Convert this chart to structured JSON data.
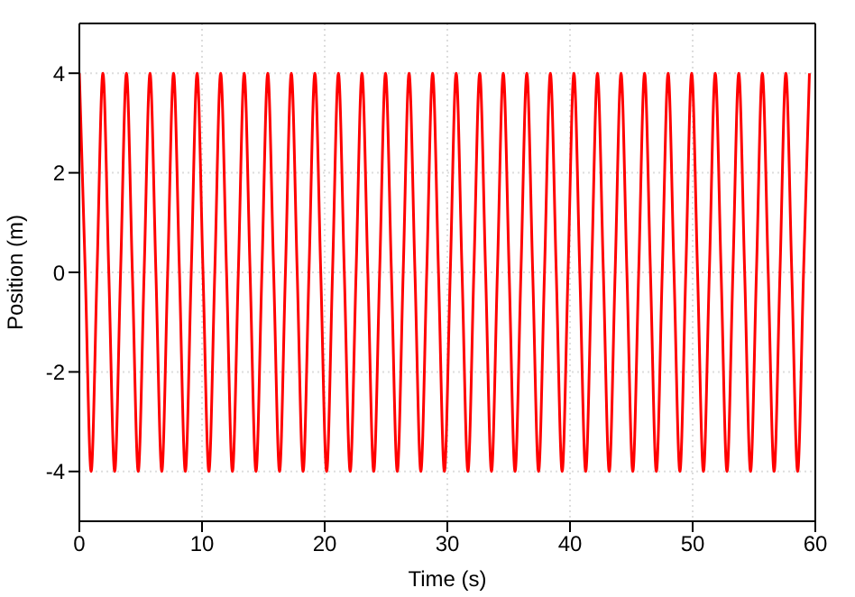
{
  "chart_data": {
    "type": "line",
    "xlabel": "Time (s)",
    "ylabel": "Position (m)",
    "xlim": [
      0,
      60
    ],
    "xticks": [
      0,
      10,
      20,
      30,
      40,
      50,
      60
    ],
    "ylim": [
      -5,
      5
    ],
    "yticks": [
      -4,
      -2,
      0,
      2,
      4
    ],
    "grid": true,
    "legend": false,
    "marker": "none",
    "line_style": "solid",
    "x": [
      0,
      0.48,
      0.96,
      1.44,
      1.92,
      2.4,
      2.88,
      3.36,
      3.84,
      4.32,
      4.8,
      5.28,
      5.76,
      6.24,
      6.72,
      7.2,
      7.68,
      8.16,
      8.64,
      9.12,
      9.6,
      10.08,
      10.56,
      11.04,
      11.52,
      12,
      12.48,
      12.96,
      13.44,
      13.92,
      14.4,
      14.88,
      15.36,
      15.84,
      16.32,
      16.8,
      17.28,
      17.76,
      18.24,
      18.72,
      19.2,
      19.68,
      20.16,
      20.64,
      21.12,
      21.6,
      22.08,
      22.56,
      23.04,
      23.52,
      24,
      24.48,
      24.96,
      25.44,
      25.92,
      26.4,
      26.88,
      27.36,
      27.84,
      28.32,
      28.8,
      29.28,
      29.76,
      30.24,
      30.72,
      31.2,
      31.68,
      32.16,
      32.64,
      33.12,
      33.6,
      34.08,
      34.56,
      35.04,
      35.52,
      36,
      36.48,
      36.96,
      37.44,
      37.92,
      38.4,
      38.88,
      39.36,
      39.84,
      40.32,
      40.8,
      41.28,
      41.76,
      42.24,
      42.72,
      43.2,
      43.68,
      44.16,
      44.64,
      45.12,
      45.6,
      46.08,
      46.56,
      47.04,
      47.52,
      48,
      48.48,
      48.96,
      49.44,
      49.92,
      50.4,
      50.88,
      51.36,
      51.84,
      52.32,
      52.8,
      53.28,
      53.76,
      54.24,
      54.72,
      55.2,
      55.68,
      56.16,
      56.64,
      57.12,
      57.6,
      58.08,
      58.56,
      59.04,
      59.52
    ],
    "series": [
      {
        "color": "#ff0000",
        "values": [
          4,
          0,
          -4,
          0,
          4,
          0,
          -4,
          0,
          4,
          0,
          -4,
          0,
          4,
          0,
          -4,
          0,
          4,
          0,
          -4,
          0,
          4,
          0,
          -4,
          0,
          4,
          0,
          -4,
          0,
          4,
          0,
          -4,
          0,
          4,
          0,
          -4,
          0,
          4,
          0,
          -4,
          0,
          4,
          0,
          -4,
          0,
          4,
          0,
          -4,
          0,
          4,
          0,
          -4,
          0,
          4,
          0,
          -4,
          0,
          4,
          0,
          -4,
          0,
          4,
          0,
          -4,
          0,
          4,
          0,
          -4,
          0,
          4,
          0,
          -4,
          0,
          4,
          0,
          -4,
          0,
          4,
          0,
          -4,
          0,
          4,
          0,
          -4,
          0,
          4,
          0,
          -4,
          0,
          4,
          0,
          -4,
          0,
          4,
          0,
          -4,
          0,
          4,
          0,
          -4,
          0,
          4,
          0,
          -4,
          0,
          4,
          0,
          -4,
          0,
          4,
          0,
          -4,
          0,
          4,
          0,
          -4,
          0,
          4,
          0,
          -4,
          0,
          4,
          0,
          -4,
          0,
          4
        ]
      }
    ]
  }
}
